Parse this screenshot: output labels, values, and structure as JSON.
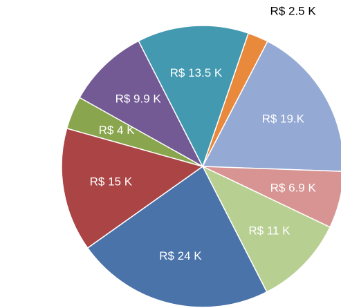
{
  "chart_data": {
    "type": "pie",
    "categories": [
      null,
      null,
      null,
      null,
      null,
      null,
      null,
      null,
      null
    ],
    "values": [
      2.5,
      19,
      6.9,
      11,
      24,
      15,
      4,
      9.9,
      13.5
    ],
    "value_labels": [
      "R$ 2.5 K",
      "R$ 19.K",
      "R$ 6.9 K",
      "R$ 11 K",
      "R$ 24 K",
      "R$ 15 K",
      "R$ 4 K",
      "R$ 9.9 K",
      "R$ 13.5 K"
    ],
    "colors": [
      "#e8893b",
      "#94a9d4",
      "#d79492",
      "#b8cf92",
      "#4a73a9",
      "#aa4445",
      "#89a54e",
      "#735a94",
      "#4299b0"
    ]
  }
}
